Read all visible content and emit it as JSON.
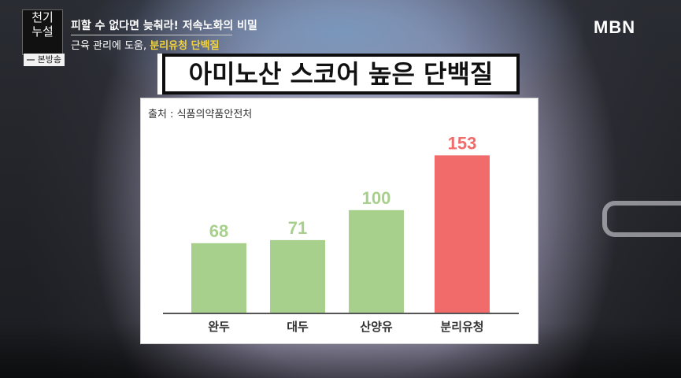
{
  "overlay": {
    "logo_lines": [
      "천기",
      "누설"
    ],
    "broadcast_tag": "본방송",
    "caption_headline": "피할 수 없다면 늦춰라! 저속노화의 비밀",
    "caption_sub_prefix": "근육 관리에 도움, ",
    "caption_sub_highlight": "분리유청 단백질",
    "channel": "MBN",
    "title": "아미노산 스코어 높은 단백질"
  },
  "chart_data": {
    "type": "bar",
    "source": "출처 : 식품의약품안전처",
    "categories": [
      "완두",
      "대두",
      "산양유",
      "분리유청"
    ],
    "values": [
      68,
      71,
      100,
      153
    ],
    "colors": [
      "#a8d08d",
      "#a8d08d",
      "#a8d08d",
      "#f26b6b"
    ],
    "label_colors": [
      "#a8d08d",
      "#a8d08d",
      "#a8d08d",
      "#f26b6b"
    ],
    "ylim": [
      0,
      170
    ],
    "grid": false,
    "legend": "none"
  }
}
